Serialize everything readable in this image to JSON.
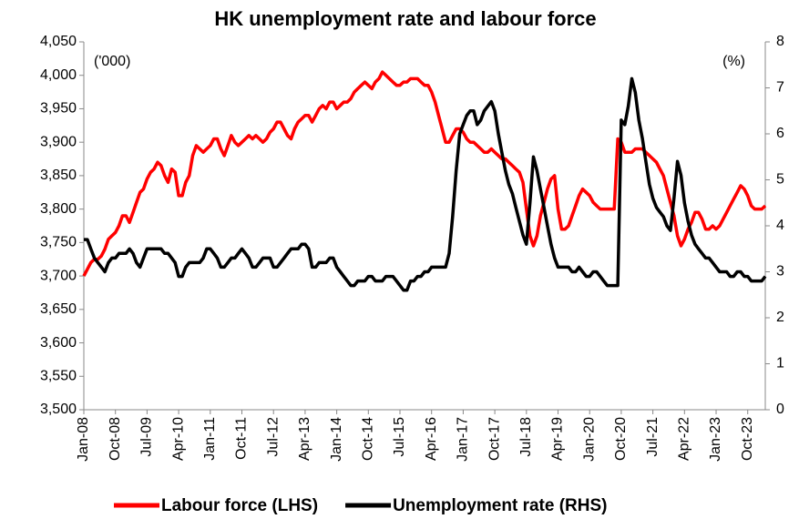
{
  "chart_data": {
    "type": "line",
    "title": "HK unemployment rate and labour force",
    "y_unit_label": "('000)",
    "y2_unit_label": "(%)",
    "categories": [
      "Jan-08",
      null,
      null,
      null,
      null,
      null,
      null,
      null,
      null,
      "Oct-08",
      null,
      null,
      null,
      null,
      null,
      null,
      null,
      null,
      "Jul-09",
      null,
      null,
      null,
      null,
      null,
      null,
      null,
      null,
      "Apr-10",
      null,
      null,
      null,
      null,
      null,
      null,
      null,
      null,
      "Jan-11",
      null,
      null,
      null,
      null,
      null,
      null,
      null,
      null,
      "Oct-11",
      null,
      null,
      null,
      null,
      null,
      null,
      null,
      null,
      "Jul-12",
      null,
      null,
      null,
      null,
      null,
      null,
      null,
      null,
      "Apr-13",
      null,
      null,
      null,
      null,
      null,
      null,
      null,
      null,
      "Jan-14",
      null,
      null,
      null,
      null,
      null,
      null,
      null,
      null,
      "Oct-14",
      null,
      null,
      null,
      null,
      null,
      null,
      null,
      null,
      "Jul-15",
      null,
      null,
      null,
      null,
      null,
      null,
      null,
      null,
      "Apr-16",
      null,
      null,
      null,
      null,
      null,
      null,
      null,
      null,
      "Jan-17",
      null,
      null,
      null,
      null,
      null,
      null,
      null,
      null,
      "Oct-17",
      null,
      null,
      null,
      null,
      null,
      null,
      null,
      null,
      "Jul-18",
      null,
      null,
      null,
      null,
      null,
      null,
      null,
      null,
      "Apr-19",
      null,
      null,
      null,
      null,
      null,
      null,
      null,
      null,
      "Jan-20",
      null,
      null,
      null,
      null,
      null,
      null,
      null,
      null,
      "Oct-20",
      null,
      null,
      null,
      null,
      null,
      null,
      null,
      null,
      "Jul-21",
      null,
      null,
      null,
      null,
      null,
      null,
      null,
      null,
      "Apr-22",
      null,
      null,
      null,
      null,
      null,
      null,
      null,
      null,
      "Jan-23",
      null,
      null,
      null,
      null,
      null,
      null,
      null,
      null,
      "Oct-23",
      null,
      null,
      null,
      null,
      null
    ],
    "series": [
      {
        "name": "Labour force (LHS)",
        "color": "#ff0000",
        "axis": "y",
        "values": [
          3700,
          3710,
          3720,
          3725,
          3725,
          3730,
          3740,
          3755,
          3760,
          3765,
          3775,
          3790,
          3790,
          3780,
          3795,
          3810,
          3825,
          3830,
          3845,
          3855,
          3860,
          3870,
          3865,
          3850,
          3840,
          3860,
          3855,
          3820,
          3820,
          3840,
          3850,
          3880,
          3895,
          3890,
          3885,
          3890,
          3895,
          3905,
          3905,
          3890,
          3880,
          3895,
          3910,
          3900,
          3895,
          3900,
          3905,
          3910,
          3905,
          3910,
          3905,
          3900,
          3905,
          3915,
          3920,
          3930,
          3930,
          3920,
          3910,
          3905,
          3920,
          3930,
          3935,
          3940,
          3940,
          3930,
          3940,
          3950,
          3955,
          3950,
          3960,
          3960,
          3950,
          3955,
          3960,
          3960,
          3965,
          3975,
          3980,
          3985,
          3990,
          3985,
          3980,
          3990,
          3995,
          4005,
          4000,
          3995,
          3990,
          3985,
          3985,
          3990,
          3990,
          3995,
          3995,
          3995,
          3990,
          3985,
          3985,
          3975,
          3960,
          3940,
          3920,
          3900,
          3900,
          3910,
          3920,
          3920,
          3915,
          3905,
          3900,
          3900,
          3895,
          3890,
          3885,
          3885,
          3890,
          3885,
          3880,
          3875,
          3875,
          3870,
          3865,
          3860,
          3855,
          3840,
          3800,
          3760,
          3745,
          3760,
          3790,
          3810,
          3830,
          3845,
          3850,
          3800,
          3770,
          3770,
          3775,
          3790,
          3805,
          3820,
          3830,
          3825,
          3820,
          3810,
          3805,
          3800,
          3800,
          3800,
          3800,
          3800,
          3905,
          3900,
          3885,
          3885,
          3885,
          3890,
          3890,
          3890,
          3885,
          3880,
          3875,
          3870,
          3860,
          3850,
          3830,
          3810,
          3790,
          3760,
          3745,
          3755,
          3770,
          3780,
          3795,
          3795,
          3785,
          3770,
          3770,
          3775,
          3770,
          3775,
          3785,
          3795,
          3805,
          3815,
          3825,
          3835,
          3830,
          3820,
          3805,
          3800,
          3800,
          3800,
          3805
        ]
      },
      {
        "name": "Unemployment rate (RHS)",
        "color": "#000000",
        "axis": "y2",
        "values": [
          3.7,
          3.7,
          3.5,
          3.3,
          3.2,
          3.1,
          3.0,
          3.2,
          3.3,
          3.3,
          3.4,
          3.4,
          3.4,
          3.5,
          3.4,
          3.2,
          3.1,
          3.3,
          3.5,
          3.5,
          3.5,
          3.5,
          3.5,
          3.4,
          3.4,
          3.3,
          3.2,
          2.9,
          2.9,
          3.1,
          3.2,
          3.2,
          3.2,
          3.2,
          3.3,
          3.5,
          3.5,
          3.4,
          3.3,
          3.1,
          3.1,
          3.2,
          3.3,
          3.3,
          3.4,
          3.5,
          3.4,
          3.3,
          3.1,
          3.1,
          3.2,
          3.3,
          3.3,
          3.3,
          3.1,
          3.1,
          3.2,
          3.3,
          3.4,
          3.5,
          3.5,
          3.5,
          3.6,
          3.6,
          3.5,
          3.1,
          3.1,
          3.2,
          3.2,
          3.2,
          3.3,
          3.3,
          3.1,
          3.0,
          2.9,
          2.8,
          2.7,
          2.7,
          2.8,
          2.8,
          2.8,
          2.9,
          2.9,
          2.8,
          2.8,
          2.8,
          2.9,
          2.9,
          2.9,
          2.8,
          2.7,
          2.6,
          2.6,
          2.8,
          2.8,
          2.9,
          2.9,
          3.0,
          3.0,
          3.1,
          3.1,
          3.1,
          3.1,
          3.1,
          3.4,
          4.2,
          5.2,
          6.0,
          6.2,
          6.4,
          6.5,
          6.5,
          6.2,
          6.3,
          6.5,
          6.6,
          6.7,
          6.5,
          6.0,
          5.6,
          5.2,
          4.9,
          4.7,
          4.4,
          4.1,
          3.8,
          3.6,
          4.5,
          5.5,
          5.2,
          4.8,
          4.4,
          4.0,
          3.6,
          3.3,
          3.1,
          3.1,
          3.1,
          3.1,
          3.0,
          3.0,
          3.1,
          3.0,
          2.9,
          2.9,
          3.0,
          3.0,
          2.9,
          2.8,
          2.7,
          2.7,
          2.7,
          2.7,
          6.3,
          6.2,
          6.6,
          7.2,
          6.9,
          6.3,
          5.9,
          5.4,
          4.9,
          4.6,
          4.4,
          4.3,
          4.2,
          4.0,
          3.9,
          4.6,
          5.4,
          5.1,
          4.5,
          4.1,
          3.8,
          3.6,
          3.5,
          3.4,
          3.3,
          3.3,
          3.2,
          3.1,
          3.0,
          3.0,
          3.0,
          2.9,
          2.9,
          3.0,
          3.0,
          2.9,
          2.9,
          2.8,
          2.8,
          2.8,
          2.8,
          2.9
        ]
      }
    ],
    "ylim": [
      3500,
      4050
    ],
    "yticks": [
      {
        "value": 3500,
        "label": "3,500"
      },
      {
        "value": 3550,
        "label": "3,550"
      },
      {
        "value": 3600,
        "label": "3,600"
      },
      {
        "value": 3650,
        "label": "3,650"
      },
      {
        "value": 3700,
        "label": "3,700"
      },
      {
        "value": 3750,
        "label": "3,750"
      },
      {
        "value": 3800,
        "label": "3,800"
      },
      {
        "value": 3850,
        "label": "3,850"
      },
      {
        "value": 3900,
        "label": "3,900"
      },
      {
        "value": 3950,
        "label": "3,950"
      },
      {
        "value": 4000,
        "label": "4,000"
      },
      {
        "value": 4050,
        "label": "4,050"
      }
    ],
    "y2lim": [
      0,
      8
    ],
    "y2ticks": [
      0,
      1,
      2,
      3,
      4,
      5,
      6,
      7,
      8
    ],
    "legend": "bottom"
  }
}
